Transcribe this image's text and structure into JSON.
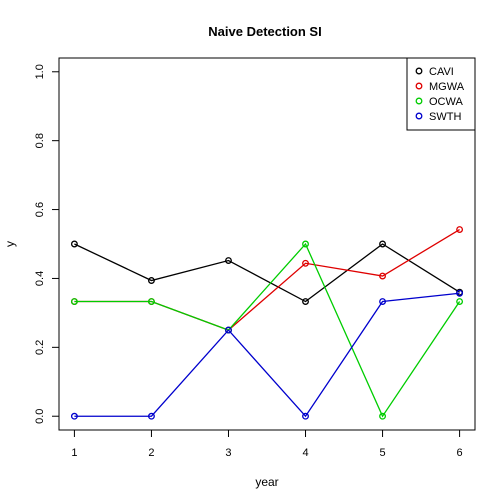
{
  "chart_data": {
    "type": "line",
    "title": "Naive Detection SI",
    "xlabel": "year",
    "ylabel": "y",
    "x": [
      1,
      2,
      3,
      4,
      5,
      6
    ],
    "xlim": [
      0.8,
      6.2
    ],
    "ylim": [
      -0.04,
      1.04
    ],
    "xticks": [
      "1",
      "2",
      "3",
      "4",
      "5",
      "6"
    ],
    "yticks": [
      "0.0",
      "0.2",
      "0.4",
      "0.6",
      "0.8",
      "1.0"
    ],
    "grid": false,
    "legend_position": "top-right",
    "series": [
      {
        "name": "CAVI",
        "color": "#000000",
        "values": [
          0.5,
          0.394,
          0.452,
          0.333,
          0.5,
          0.36
        ]
      },
      {
        "name": "MGWA",
        "color": "#DF0000",
        "values": [
          0.333,
          0.333,
          0.25,
          0.444,
          0.407,
          0.542
        ]
      },
      {
        "name": "OCWA",
        "color": "#00CD00",
        "values": [
          0.333,
          0.333,
          0.25,
          0.5,
          0.0,
          0.333
        ]
      },
      {
        "name": "SWTH",
        "color": "#0000CD",
        "values": [
          0.0,
          0.0,
          0.25,
          0.0,
          0.333,
          0.357
        ]
      }
    ]
  }
}
